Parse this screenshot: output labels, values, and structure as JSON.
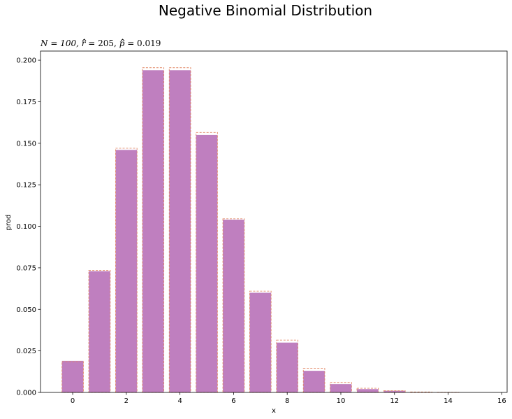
{
  "chart_data": {
    "type": "bar",
    "title": "Negative Binomial Distribution",
    "subtitle_tex": {
      "part1": "N = 100, ",
      "r_symbol": "r",
      "part2": " = 205, ",
      "p_symbol": "p",
      "part3": " = 0.019"
    },
    "xlabel": "x",
    "ylabel": "prod",
    "xlim": [
      -1.2,
      16.2
    ],
    "ylim": [
      0,
      0.2055
    ],
    "xticks": [
      0,
      2,
      4,
      6,
      8,
      10,
      12,
      14,
      16
    ],
    "yticks": [
      0.0,
      0.025,
      0.05,
      0.075,
      0.1,
      0.125,
      0.15,
      0.175,
      0.2
    ],
    "ytick_labels": [
      "0.000",
      "0.025",
      "0.050",
      "0.075",
      "0.100",
      "0.125",
      "0.150",
      "0.175",
      "0.200"
    ],
    "grid": false,
    "series": [
      {
        "style": "filled",
        "color": "#bf7fbf",
        "x": [
          0,
          1,
          2,
          3,
          4,
          5,
          6,
          7,
          8,
          9,
          10,
          11,
          12,
          13,
          14,
          15
        ],
        "values": [
          0.019,
          0.073,
          0.146,
          0.194,
          0.194,
          0.155,
          0.104,
          0.06,
          0.03,
          0.013,
          0.005,
          0.002,
          0.001,
          0.0,
          0.0,
          0.0
        ]
      },
      {
        "style": "dashed-outline",
        "color": "#e28a68",
        "x": [
          0,
          1,
          2,
          3,
          4,
          5,
          6,
          7,
          8,
          9,
          10,
          11,
          12,
          13,
          14,
          15
        ],
        "values": [
          0.0185,
          0.0735,
          0.147,
          0.1955,
          0.1955,
          0.1565,
          0.1045,
          0.061,
          0.0315,
          0.0145,
          0.006,
          0.0025,
          0.001,
          0.0003,
          0.0001,
          0.0
        ]
      }
    ]
  }
}
